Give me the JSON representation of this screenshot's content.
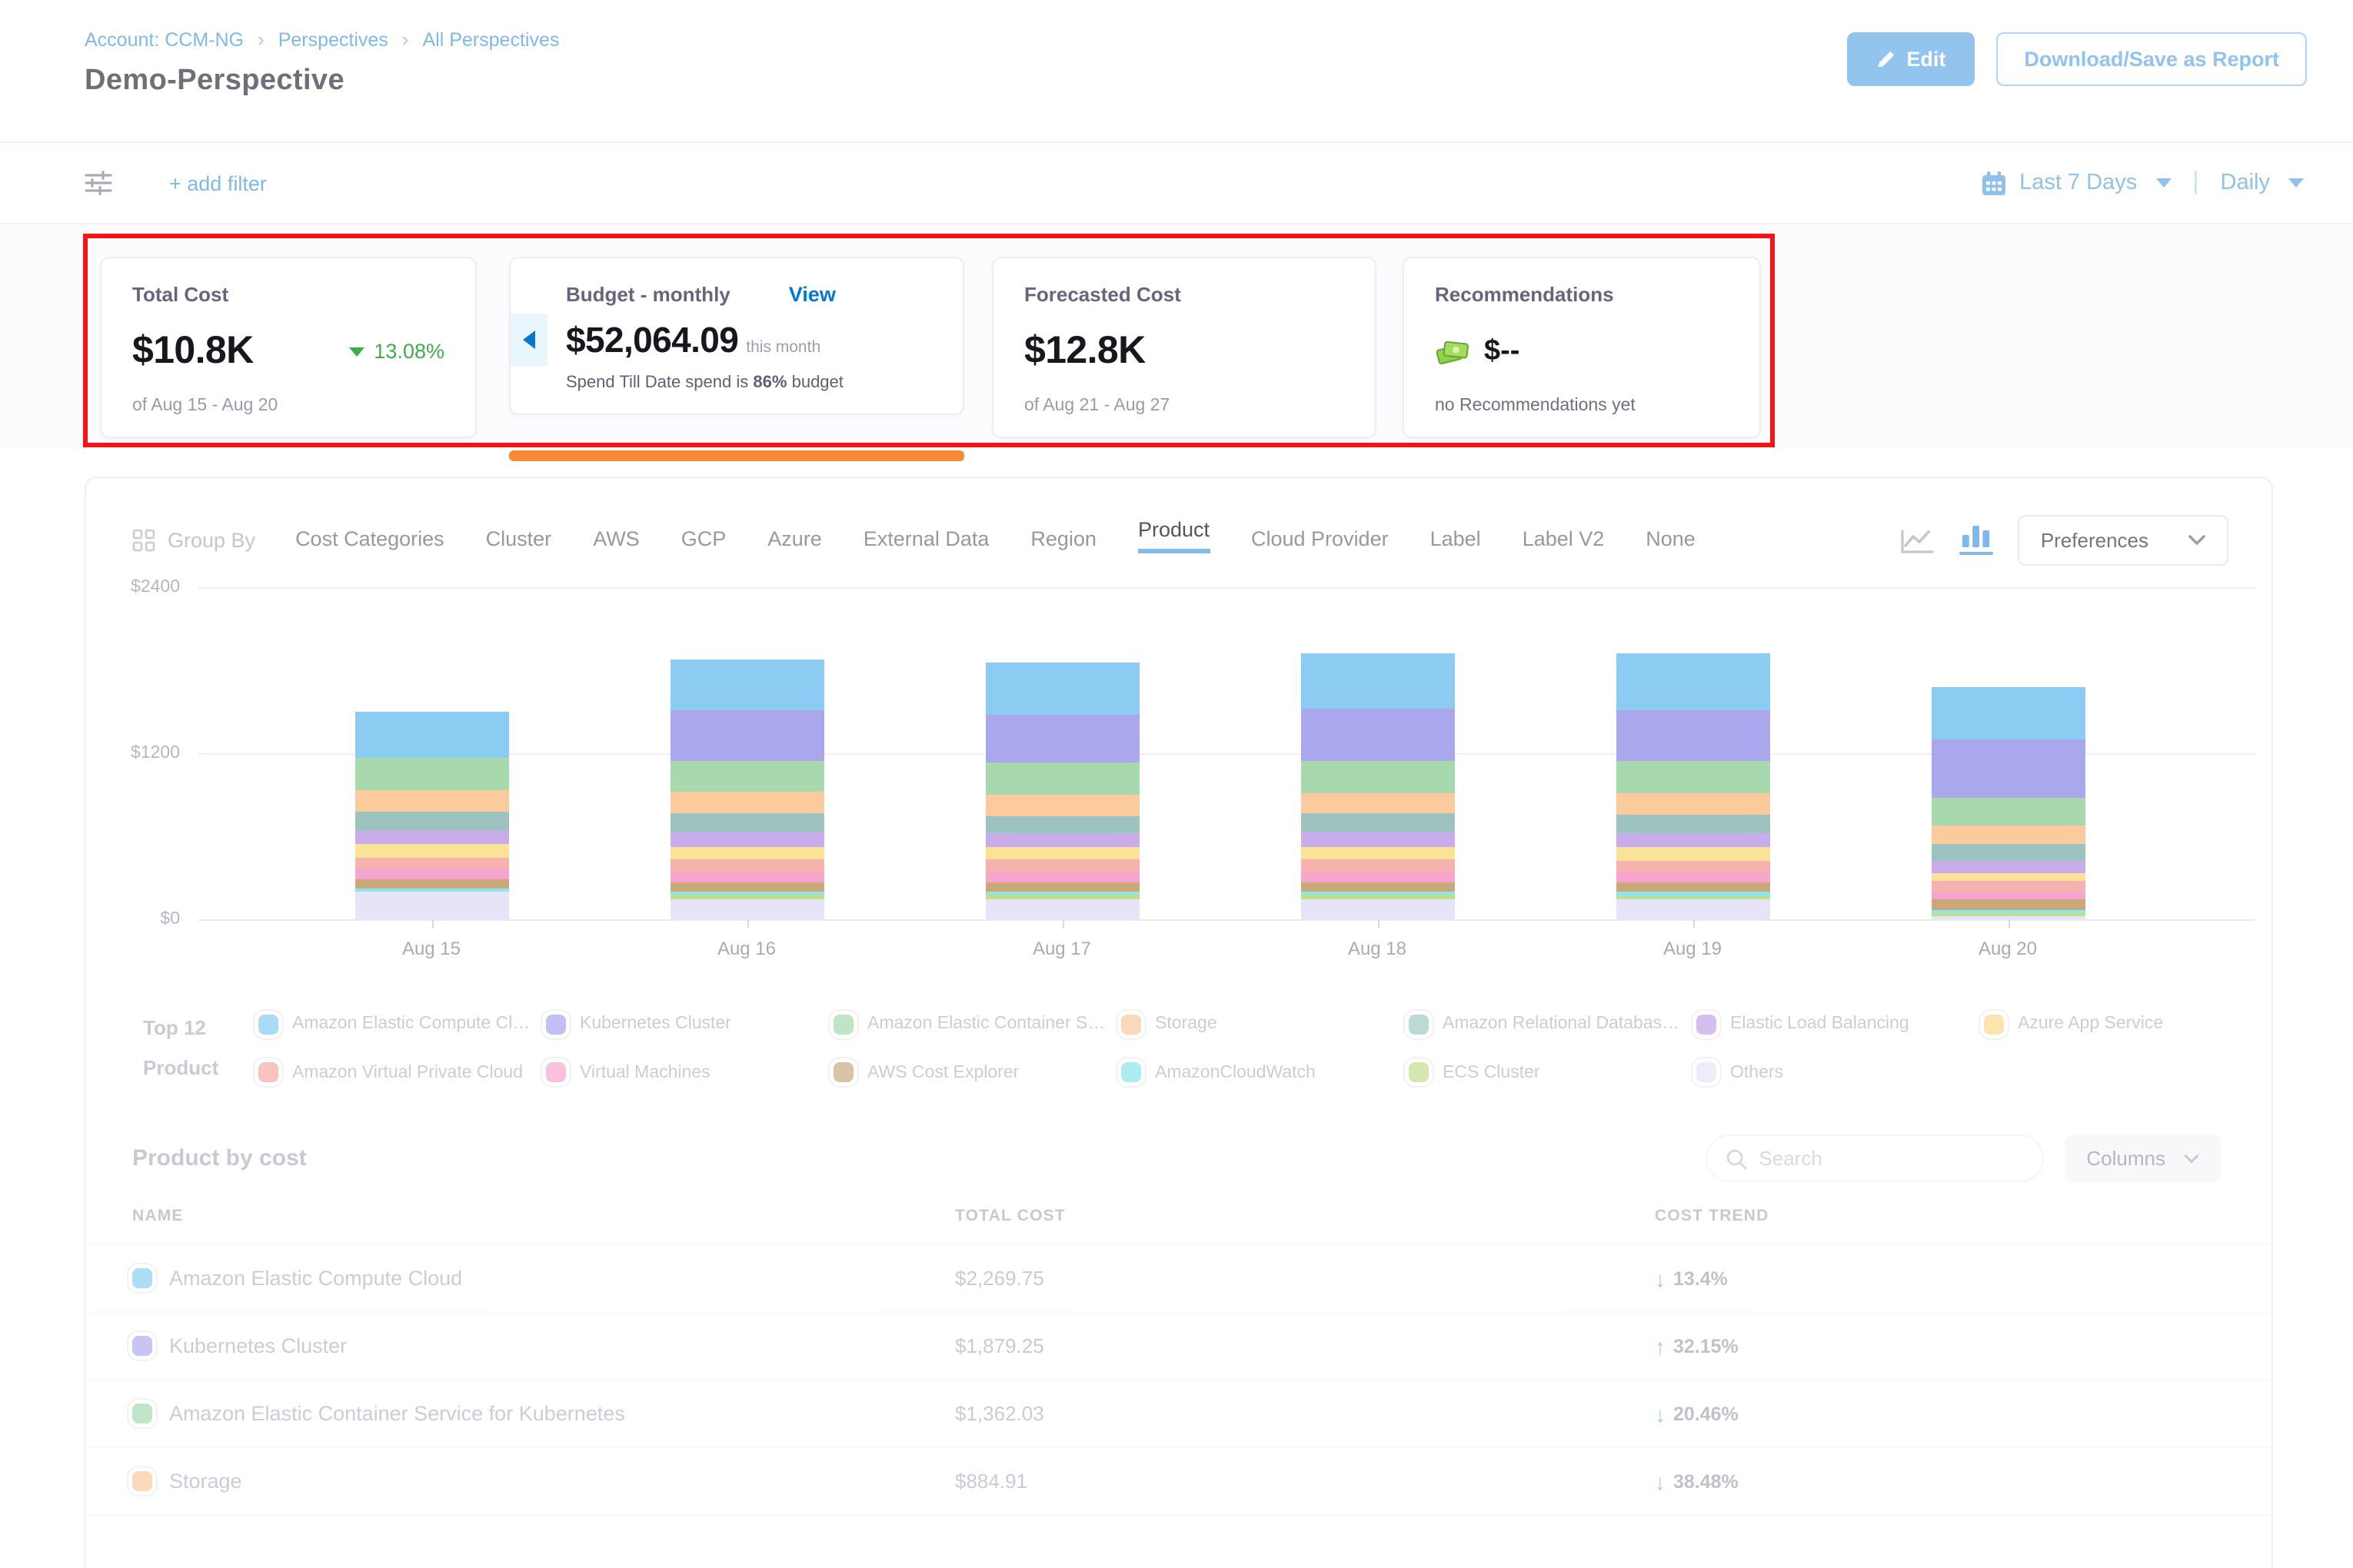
{
  "header": {
    "breadcrumb": [
      "Account: CCM-NG",
      "Perspectives",
      "All Perspectives"
    ],
    "title": "Demo-Perspective",
    "edit_label": "Edit",
    "download_label": "Download/Save as Report"
  },
  "filter_bar": {
    "add_filter_label": "+ add filter",
    "date_range_label": "Last 7 Days",
    "granularity_label": "Daily"
  },
  "summary_cards": {
    "annotation_color": "#F71414",
    "total_cost": {
      "label": "Total Cost",
      "value": "$10.8K",
      "delta": "13.08%",
      "delta_color": "#3EAE4D",
      "sub": "of Aug 15 - Aug 20"
    },
    "budget": {
      "label": "Budget - monthly",
      "view_label": "View",
      "value": "$52,064.09",
      "value_suffix": "this month",
      "sub_prefix": "Spend Till Date spend is",
      "sub_pct": "86%",
      "sub_suffix": "budget",
      "bar_color": "#F98A35"
    },
    "forecast": {
      "label": "Forecasted Cost",
      "value": "$12.8K",
      "sub": "of Aug 21 - Aug 27"
    },
    "recommendations": {
      "label": "Recommendations",
      "value": "$--",
      "sub": "no Recommendations yet"
    }
  },
  "group_by": {
    "label": "Group By",
    "tabs": [
      "Cost Categories",
      "Cluster",
      "AWS",
      "GCP",
      "Azure",
      "External Data",
      "Region",
      "Product",
      "Cloud Provider",
      "Label",
      "Label V2",
      "None"
    ],
    "active_tab": "Product",
    "preferences_label": "Preferences"
  },
  "chart_data": {
    "type": "bar",
    "stacked": true,
    "title": "",
    "xlabel": "",
    "ylabel": "",
    "ylim": [
      0,
      2400
    ],
    "yticks": [
      {
        "label": "$0",
        "value": 0
      },
      {
        "label": "$1200",
        "value": 1200
      },
      {
        "label": "$2400",
        "value": 2400
      }
    ],
    "categories": [
      "Aug 15",
      "Aug 16",
      "Aug 17",
      "Aug 18",
      "Aug 19",
      "Aug 20"
    ],
    "legend_position": "bottom",
    "grid": true,
    "stack_order": "first series is bottom of stack",
    "series": [
      {
        "name": "Others",
        "color": "#E5E4F8",
        "values": [
          200,
          150,
          150,
          145,
          140,
          23
        ]
      },
      {
        "name": "ECS Cluster",
        "color": "#BEDF8E",
        "values": [
          0,
          30,
          30,
          30,
          30,
          25
        ]
      },
      {
        "name": "AmazonCloudWatch",
        "color": "#90E5EA",
        "values": [
          25,
          25,
          25,
          25,
          25,
          20
        ]
      },
      {
        "name": "AWS Cost Explorer",
        "color": "#CBA87A",
        "values": [
          65,
          65,
          65,
          70,
          70,
          75
        ]
      },
      {
        "name": "Virtual Machines",
        "color": "#F6A6CC",
        "values": [
          75,
          75,
          75,
          75,
          75,
          60
        ]
      },
      {
        "name": "Amazon Virtual Private Cloud",
        "color": "#F6B3AD",
        "values": [
          85,
          85,
          85,
          85,
          85,
          75
        ]
      },
      {
        "name": "Azure App Service",
        "color": "#FAE398",
        "values": [
          95,
          95,
          90,
          95,
          95,
          60
        ]
      },
      {
        "name": "Elastic Load Balancing",
        "color": "#C9ADEB",
        "values": [
          105,
          105,
          100,
          105,
          105,
          90
        ]
      },
      {
        "name": "Amazon Relational Database Service",
        "color": "#9DC3BE",
        "values": [
          130,
          135,
          130,
          135,
          135,
          120
        ]
      },
      {
        "name": "Storage",
        "color": "#FBCB9E",
        "values": [
          150,
          155,
          150,
          150,
          150,
          130
        ]
      },
      {
        "name": "Amazon Elastic Container Service for Kubernetes",
        "color": "#A8D8AE",
        "values": [
          240,
          230,
          230,
          230,
          230,
          202
        ]
      },
      {
        "name": "Kubernetes Cluster",
        "color": "#ABA7ED",
        "values": [
          0,
          360,
          350,
          380,
          370,
          420
        ]
      },
      {
        "name": "Amazon Elastic Compute Cloud",
        "color": "#8CCBF2",
        "values": [
          330,
          370,
          380,
          400,
          410,
          380
        ]
      }
    ]
  },
  "legend": {
    "title_line1": "Top 12",
    "title_line2": "Product",
    "items": [
      {
        "label": "Amazon Elastic Compute Clo...",
        "color": "#63BEEF"
      },
      {
        "label": "Kubernetes Cluster",
        "color": "#928EE8"
      },
      {
        "label": "Amazon Elastic Container Se...",
        "color": "#8BD096"
      },
      {
        "label": "Storage",
        "color": "#F9B981"
      },
      {
        "label": "Amazon Relational Database ...",
        "color": "#87BCB4"
      },
      {
        "label": "Elastic Load Balancing",
        "color": "#B18BE4"
      },
      {
        "label": "Azure App Service",
        "color": "#F7D06E"
      },
      {
        "label": "Amazon Virtual Private Cloud",
        "color": "#F2948B"
      },
      {
        "label": "Virtual Machines",
        "color": "#F392C5"
      },
      {
        "label": "AWS Cost Explorer",
        "color": "#BC9560"
      },
      {
        "label": "AmazonCloudWatch",
        "color": "#6FDEE6"
      },
      {
        "label": "ECS Cluster",
        "color": "#AFD66E"
      },
      {
        "label": "Others",
        "color": "#E0DEF7"
      }
    ]
  },
  "table": {
    "title": "Product by cost",
    "search_placeholder": "Search",
    "columns_label": "Columns",
    "headers": [
      "NAME",
      "TOTAL COST",
      "COST TREND"
    ],
    "rows": [
      {
        "name": "Amazon Elastic Compute Cloud",
        "color": "#6BC2EE",
        "total": "$2,269.75",
        "trend": "13.4%",
        "direction": "down"
      },
      {
        "name": "Kubernetes Cluster",
        "color": "#9B97EA",
        "total": "$1,879.25",
        "trend": "32.15%",
        "direction": "up"
      },
      {
        "name": "Amazon Elastic Container Service for Kubernetes",
        "color": "#8FD29B",
        "total": "$1,362.03",
        "trend": "20.46%",
        "direction": "down"
      },
      {
        "name": "Storage",
        "color": "#FABB84",
        "total": "$884.91",
        "trend": "38.48%",
        "direction": "down"
      }
    ]
  }
}
